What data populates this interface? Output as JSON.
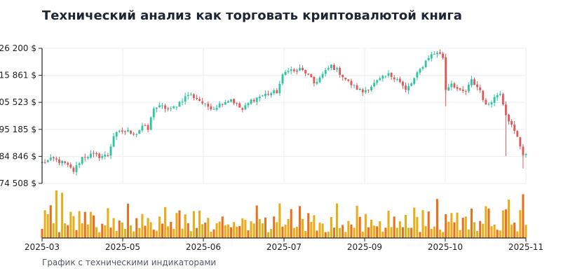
{
  "title": "Технический анализ как торговать криптовалютой книга",
  "caption": "График с техническими индикаторами",
  "colors": {
    "up": "#2ec4a0",
    "down": "#e05a5a",
    "volume_hot": "#e8701e",
    "volume_warm": "#e8ad18",
    "grid": "#eeeeee",
    "axis": "#222222"
  },
  "chart_data": {
    "type": "candlestick",
    "price_axis": {
      "ticks": [
        74508,
        84846,
        95185,
        105523,
        115861,
        126200
      ],
      "tick_labels": [
        "74 508 $",
        "84 846 $",
        "95 185 $",
        "105 523 $",
        "115 861 $",
        "126 200 $"
      ],
      "range": [
        74508,
        126200
      ]
    },
    "time_axis": {
      "tick_labels": [
        "2025-03",
        "2025-05",
        "2025-06",
        "2025-07",
        "2025-09",
        "2025-10",
        "2025-11"
      ]
    },
    "close_path": [
      [
        0,
        82500
      ],
      [
        4,
        83800
      ],
      [
        8,
        82000
      ],
      [
        11,
        79200
      ],
      [
        14,
        84500
      ],
      [
        17,
        85400
      ],
      [
        20,
        84900
      ],
      [
        23,
        85200
      ],
      [
        25,
        92800
      ],
      [
        28,
        94500
      ],
      [
        31,
        94200
      ],
      [
        33,
        93600
      ],
      [
        35,
        96600
      ],
      [
        37,
        95000
      ],
      [
        39,
        103600
      ],
      [
        42,
        103800
      ],
      [
        45,
        102600
      ],
      [
        48,
        105500
      ],
      [
        51,
        108500
      ],
      [
        54,
        107200
      ],
      [
        57,
        104300
      ],
      [
        60,
        103400
      ],
      [
        63,
        105500
      ],
      [
        66,
        106800
      ],
      [
        68,
        104500
      ],
      [
        70,
        102600
      ],
      [
        73,
        106200
      ],
      [
        76,
        107800
      ],
      [
        79,
        108800
      ],
      [
        82,
        109500
      ],
      [
        84,
        115500
      ],
      [
        86,
        118500
      ],
      [
        88,
        117200
      ],
      [
        90,
        118100
      ],
      [
        92,
        117000
      ],
      [
        95,
        112800
      ],
      [
        98,
        116000
      ],
      [
        101,
        119600
      ],
      [
        104,
        116800
      ],
      [
        107,
        113200
      ],
      [
        110,
        110800
      ],
      [
        112,
        109500
      ],
      [
        115,
        111800
      ],
      [
        118,
        114200
      ],
      [
        121,
        116000
      ],
      [
        124,
        114800
      ],
      [
        127,
        110000
      ],
      [
        129,
        112800
      ],
      [
        132,
        118000
      ],
      [
        135,
        123000
      ],
      [
        138,
        124800
      ],
      [
        140,
        122800
      ],
      [
        141,
        110500
      ],
      [
        143,
        113000
      ],
      [
        146,
        109500
      ],
      [
        148,
        109500
      ],
      [
        150,
        113800
      ],
      [
        153,
        110200
      ],
      [
        155,
        104000
      ],
      [
        157,
        106400
      ],
      [
        160,
        109500
      ],
      [
        162,
        101300
      ],
      [
        164,
        96500
      ],
      [
        166,
        92000
      ],
      [
        168,
        85800
      ]
    ],
    "volume": {
      "base": [
        0.2,
        0.5,
        0.3,
        0.7,
        0.35,
        0.45,
        0.2,
        0.55,
        0.3,
        0.25,
        0.65,
        0.4,
        0.15,
        0.5,
        0.3,
        0.6,
        0.25,
        0.35,
        0.45,
        0.2
      ],
      "spikes": [
        {
          "i": 2,
          "v": 0.5
        },
        {
          "i": 5,
          "v": 1.0
        },
        {
          "i": 7,
          "v": 0.95
        },
        {
          "i": 17,
          "v": 0.55
        },
        {
          "i": 37,
          "v": 0.42
        },
        {
          "i": 48,
          "v": 0.58
        },
        {
          "i": 76,
          "v": 0.4
        },
        {
          "i": 86,
          "v": 0.4
        },
        {
          "i": 95,
          "v": 0.48
        },
        {
          "i": 138,
          "v": 0.82
        },
        {
          "i": 148,
          "v": 0.45
        },
        {
          "i": 156,
          "v": 0.62
        },
        {
          "i": 162,
          "v": 0.6
        },
        {
          "i": 168,
          "v": 0.92
        }
      ]
    }
  }
}
